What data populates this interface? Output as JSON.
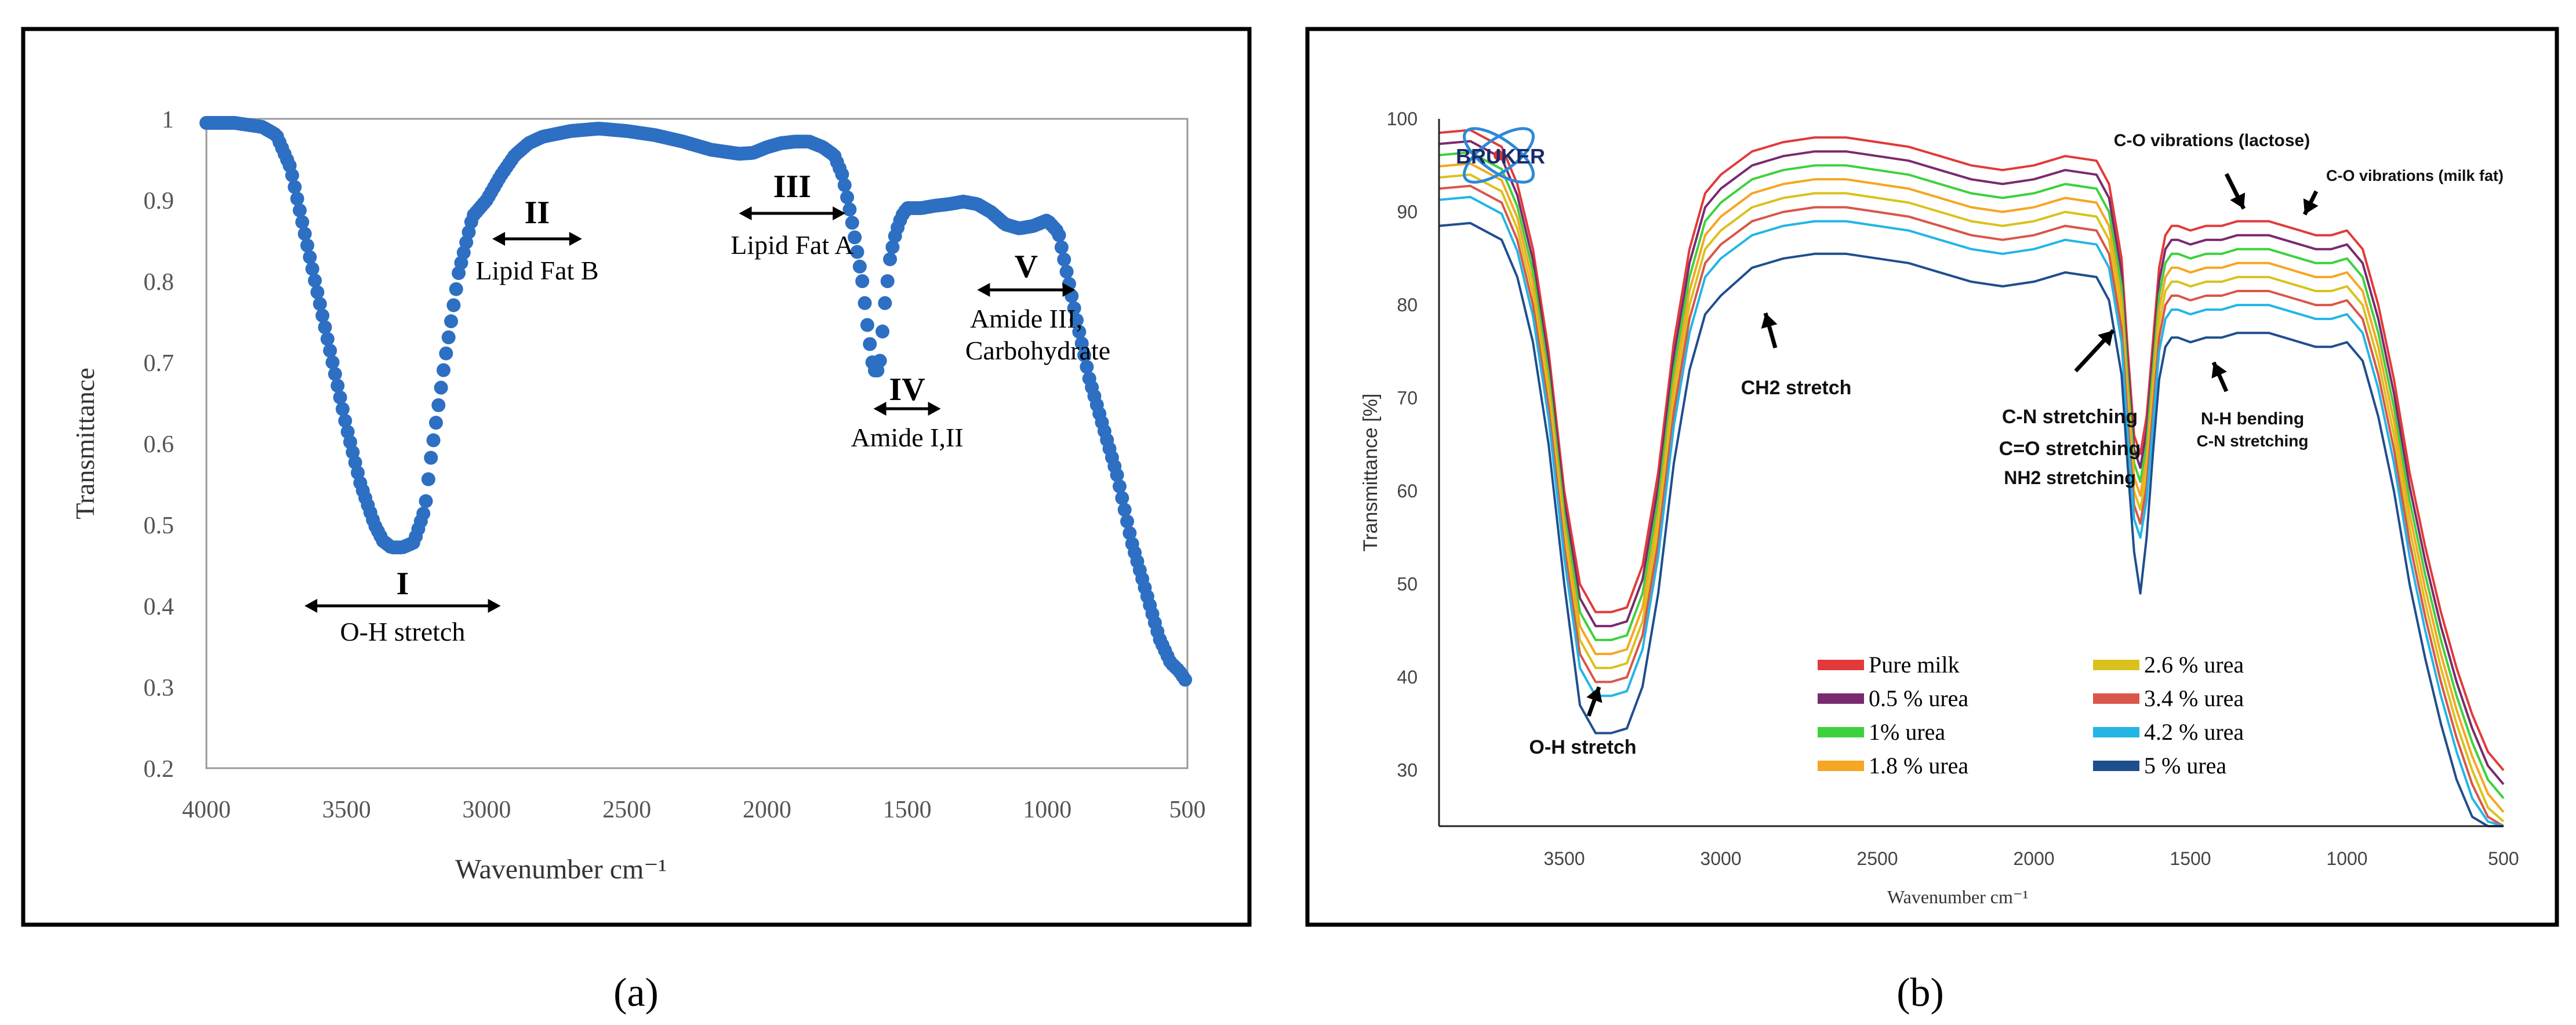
{
  "chart_data": [
    {
      "type": "scatter",
      "panel_label": "(a)",
      "title": "",
      "xlabel": "Wavenumber cm⁻¹",
      "ylabel": "Transmittance",
      "xlim": [
        4000,
        500
      ],
      "ylim": [
        0.2,
        1.0
      ],
      "xticks": [
        4000,
        3500,
        3000,
        2500,
        2000,
        1500,
        1000,
        500
      ],
      "yticks": [
        0.2,
        0.3,
        0.4,
        0.5,
        0.6,
        0.7,
        0.8,
        0.9,
        1.0
      ],
      "ytick_labels": [
        "0.2",
        "0.3",
        "0.4",
        "0.5",
        "0.6",
        "0.7",
        "0.8",
        "0.9",
        "1"
      ],
      "color": "#2d6fc2",
      "series": [
        {
          "name": "Transmittance",
          "x": [
            4000,
            3900,
            3800,
            3750,
            3700,
            3650,
            3600,
            3550,
            3500,
            3450,
            3400,
            3370,
            3340,
            3300,
            3260,
            3220,
            3200,
            3150,
            3100,
            3050,
            3000,
            2950,
            2900,
            2850,
            2800,
            2700,
            2600,
            2500,
            2400,
            2300,
            2200,
            2100,
            2050,
            2000,
            1950,
            1900,
            1850,
            1800,
            1760,
            1730,
            1700,
            1680,
            1660,
            1640,
            1620,
            1600,
            1580,
            1560,
            1540,
            1520,
            1500,
            1450,
            1400,
            1350,
            1300,
            1250,
            1200,
            1150,
            1100,
            1050,
            1000,
            960,
            930,
            900,
            850,
            800,
            750,
            700,
            650,
            600,
            560,
            530,
            500
          ],
          "y": [
            0.995,
            0.995,
            0.99,
            0.98,
            0.94,
            0.86,
            0.78,
            0.7,
            0.62,
            0.55,
            0.5,
            0.48,
            0.472,
            0.472,
            0.478,
            0.52,
            0.58,
            0.7,
            0.81,
            0.88,
            0.9,
            0.93,
            0.955,
            0.97,
            0.978,
            0.985,
            0.988,
            0.985,
            0.98,
            0.972,
            0.962,
            0.957,
            0.958,
            0.965,
            0.97,
            0.972,
            0.972,
            0.965,
            0.955,
            0.93,
            0.88,
            0.84,
            0.8,
            0.74,
            0.69,
            0.69,
            0.77,
            0.83,
            0.86,
            0.88,
            0.89,
            0.89,
            0.893,
            0.895,
            0.898,
            0.895,
            0.885,
            0.87,
            0.865,
            0.868,
            0.875,
            0.86,
            0.81,
            0.76,
            0.68,
            0.62,
            0.56,
            0.48,
            0.42,
            0.36,
            0.33,
            0.32,
            0.305
          ]
        }
      ],
      "annotations": [
        {
          "numeral": "I",
          "label": "O-H stretch",
          "range": [
            3650,
            2950
          ]
        },
        {
          "numeral": "II",
          "label": "Lipid Fat B",
          "range": [
            2980,
            2660
          ]
        },
        {
          "numeral": "III",
          "label": "Lipid Fat A",
          "range": [
            2100,
            1720
          ]
        },
        {
          "numeral": "IV",
          "label": "Amide I,II",
          "range": [
            1620,
            1380
          ]
        },
        {
          "numeral": "V",
          "label": "Amide III, Carbohydrate",
          "range": [
            1250,
            900
          ]
        }
      ]
    },
    {
      "type": "line",
      "panel_label": "(b)",
      "title": "",
      "xlabel": "Wavenumber cm⁻¹",
      "ylabel": "Transmittance [%]",
      "xlim": [
        3900,
        500
      ],
      "ylim": [
        24,
        100
      ],
      "xticks": [
        3500,
        3000,
        2500,
        2000,
        1500,
        1000,
        500
      ],
      "yticks": [
        30,
        40,
        50,
        60,
        70,
        80,
        90,
        100
      ],
      "x": [
        3900,
        3800,
        3700,
        3650,
        3600,
        3550,
        3500,
        3450,
        3400,
        3350,
        3300,
        3250,
        3200,
        3150,
        3100,
        3050,
        3000,
        2900,
        2800,
        2700,
        2600,
        2500,
        2400,
        2300,
        2200,
        2100,
        2000,
        1900,
        1800,
        1760,
        1720,
        1700,
        1680,
        1660,
        1640,
        1620,
        1600,
        1580,
        1560,
        1540,
        1500,
        1450,
        1400,
        1350,
        1300,
        1250,
        1200,
        1150,
        1100,
        1050,
        1000,
        950,
        900,
        850,
        800,
        750,
        700,
        650,
        600,
        550,
        500
      ],
      "series": [
        {
          "name": "Pure milk",
          "color": "#e23a3a",
          "values": [
            98.5,
            98.8,
            97,
            93,
            86,
            75,
            60,
            50,
            47,
            47,
            47.5,
            52,
            62,
            76,
            86,
            92,
            94,
            96.5,
            97.5,
            98,
            98,
            97.5,
            97,
            96,
            95,
            94.5,
            95,
            96,
            95.5,
            93,
            85,
            75,
            66,
            64,
            68,
            76,
            84,
            87.5,
            88.5,
            88.5,
            88,
            88.5,
            88.5,
            89,
            89,
            89,
            88.5,
            88,
            87.5,
            87.5,
            88,
            86,
            80,
            72,
            62,
            54,
            47,
            41,
            36,
            32,
            30
          ]
        },
        {
          "name": "0.5 % urea",
          "color": "#7a2a6e",
          "values": [
            97.3,
            97.6,
            95.8,
            91.8,
            84.8,
            73.8,
            58.8,
            48.5,
            45.5,
            45.5,
            46,
            50.5,
            60.5,
            74.5,
            84.5,
            90.5,
            92.5,
            95,
            96,
            96.5,
            96.5,
            96,
            95.5,
            94.5,
            93.5,
            93,
            93.5,
            94.5,
            94,
            91.5,
            83.5,
            73.5,
            64.5,
            62.5,
            66.5,
            74.5,
            82.5,
            86,
            87,
            87,
            86.5,
            87,
            87,
            87.5,
            87.5,
            87.5,
            87,
            86.5,
            86,
            86,
            86.5,
            84.5,
            78.5,
            70.5,
            60.5,
            52.5,
            45.5,
            39.5,
            34.5,
            30.5,
            28.5
          ]
        },
        {
          "name": "1% urea",
          "color": "#3dd13d",
          "values": [
            96.1,
            96.4,
            94.6,
            90.6,
            83.6,
            72.6,
            57.6,
            47,
            44,
            44,
            44.5,
            49,
            59,
            73,
            83,
            89,
            91,
            93.5,
            94.5,
            95,
            95,
            94.5,
            94,
            93,
            92,
            91.5,
            92,
            93,
            92.5,
            90,
            82,
            72,
            63,
            61,
            65,
            73,
            81,
            84.5,
            85.5,
            85.5,
            85,
            85.5,
            85.5,
            86,
            86,
            86,
            85.5,
            85,
            84.5,
            84.5,
            85,
            83,
            77,
            69,
            59,
            51,
            44,
            38,
            33,
            29,
            27
          ]
        },
        {
          "name": "1.8 % urea",
          "color": "#f5a623",
          "values": [
            94.9,
            95.2,
            93.4,
            89.4,
            82.4,
            71.4,
            56.4,
            45.5,
            42.5,
            42.5,
            43,
            47.5,
            57.5,
            71.5,
            81.5,
            87.5,
            89.5,
            92,
            93,
            93.5,
            93.5,
            93,
            92.5,
            91.5,
            90.5,
            90,
            90.5,
            91.5,
            91,
            88.5,
            80.5,
            70.5,
            61.5,
            59.5,
            63.5,
            71.5,
            79.5,
            83,
            84,
            84,
            83.5,
            84,
            84,
            84.5,
            84.5,
            84.5,
            84,
            83.5,
            83,
            83,
            83.5,
            81.5,
            75.5,
            67.5,
            57.5,
            49.5,
            42.5,
            36.5,
            31.5,
            27.5,
            25.5
          ]
        },
        {
          "name": "2.6 % urea",
          "color": "#d9c21c",
          "values": [
            93.7,
            94,
            92.2,
            88.2,
            81.2,
            70.2,
            55.2,
            44,
            41,
            41,
            41.5,
            46,
            56,
            70,
            80,
            86,
            88,
            90.5,
            91.5,
            92,
            92,
            91.5,
            91,
            90,
            89,
            88.5,
            89,
            90,
            89.5,
            87,
            79,
            69,
            60,
            58,
            62,
            70,
            78,
            81.5,
            82.5,
            82.5,
            82,
            82.5,
            82.5,
            83,
            83,
            83,
            82.5,
            82,
            81.5,
            81.5,
            82,
            80,
            74,
            66,
            56,
            48,
            41,
            35,
            30,
            26,
            24.5
          ]
        },
        {
          "name": "3.4 % urea",
          "color": "#d9564a",
          "values": [
            92.5,
            92.8,
            91,
            87,
            80,
            69,
            54,
            42.5,
            39.5,
            39.5,
            40,
            44.5,
            54.5,
            68.5,
            78.5,
            84.5,
            86.5,
            89,
            90,
            90.5,
            90.5,
            90,
            89.5,
            88.5,
            87.5,
            87,
            87.5,
            88.5,
            88,
            85.5,
            77.5,
            67.5,
            58.5,
            56.5,
            60.5,
            68.5,
            76.5,
            80,
            81,
            81,
            80.5,
            81,
            81,
            81.5,
            81.5,
            81.5,
            81,
            80.5,
            80,
            80,
            80.5,
            78.5,
            72.5,
            64.5,
            54.5,
            46.5,
            39.5,
            33.5,
            28.5,
            25,
            24
          ]
        },
        {
          "name": "4.2 % urea",
          "color": "#22b5e6",
          "values": [
            91.3,
            91.6,
            89.8,
            85.8,
            78.8,
            67.8,
            52.8,
            41,
            38,
            38,
            38.5,
            43,
            53,
            67,
            77,
            83,
            85,
            87.5,
            88.5,
            89,
            89,
            88.5,
            88,
            87,
            86,
            85.5,
            86,
            87,
            86.5,
            84,
            76,
            66,
            57,
            55,
            59,
            67,
            75,
            78.5,
            79.5,
            79.5,
            79,
            79.5,
            79.5,
            80,
            80,
            80,
            79.5,
            79,
            78.5,
            78.5,
            79,
            77,
            71,
            63,
            53,
            45,
            38,
            32,
            27,
            24.5,
            24
          ]
        },
        {
          "name": "5 % urea",
          "color": "#1f4e8f",
          "values": [
            88.5,
            88.8,
            87,
            83,
            76,
            65,
            50,
            37,
            34,
            34,
            34.5,
            39,
            49,
            63,
            73,
            79,
            81,
            84,
            85,
            85.5,
            85.5,
            85,
            84.5,
            83.5,
            82.5,
            82,
            82.5,
            83.5,
            83,
            80.5,
            72.5,
            62.5,
            53.5,
            49,
            55,
            64,
            72,
            75.5,
            76.5,
            76.5,
            76,
            76.5,
            76.5,
            77,
            77,
            77,
            76.5,
            76,
            75.5,
            75.5,
            76,
            74,
            68,
            60,
            50,
            42,
            35,
            29,
            25,
            24,
            24
          ]
        }
      ],
      "annotations": [
        {
          "label": "O-H stretch",
          "at": 3450
        },
        {
          "label": "CH2 stretch",
          "at": 2900
        },
        {
          "label": "C-N stretching",
          "at": 1750
        },
        {
          "label": "C=O stretching",
          "at": 1750
        },
        {
          "label": "NH2 stretching",
          "at": 1750
        },
        {
          "label": "C-O vibrations (lactose)",
          "at": 1300
        },
        {
          "label": "C-O vibrations (milk fat)",
          "at": 1180
        },
        {
          "label": "N-H bending",
          "at": 1380
        },
        {
          "label": "C-N stretching",
          "at": 1380
        }
      ],
      "logo_text": "BRUKER"
    }
  ]
}
